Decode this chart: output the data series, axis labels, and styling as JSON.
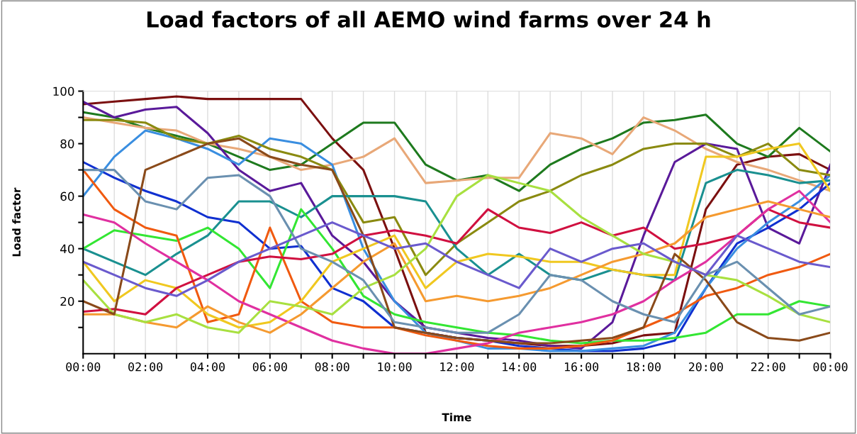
{
  "chart_data": {
    "type": "line",
    "title": "Load factors of all AEMO wind farms over 24 h",
    "xlabel": "Time",
    "ylabel": "Load factor",
    "x": [
      0,
      1,
      2,
      3,
      4,
      5,
      6,
      7,
      8,
      9,
      10,
      11,
      12,
      13,
      14,
      15,
      16,
      17,
      18,
      19,
      20,
      21,
      22,
      23,
      24
    ],
    "xlim": [
      0,
      24
    ],
    "ylim": [
      0,
      100
    ],
    "xticks": [
      {
        "value": 0,
        "label": "00:00"
      },
      {
        "value": 1,
        "label": null
      },
      {
        "value": 2,
        "label": "02:00"
      },
      {
        "value": 3,
        "label": null
      },
      {
        "value": 4,
        "label": "04:00"
      },
      {
        "value": 5,
        "label": null
      },
      {
        "value": 6,
        "label": "06:00"
      },
      {
        "value": 7,
        "label": null
      },
      {
        "value": 8,
        "label": "08:00"
      },
      {
        "value": 9,
        "label": null
      },
      {
        "value": 10,
        "label": "10:00"
      },
      {
        "value": 11,
        "label": null
      },
      {
        "value": 12,
        "label": "12:00"
      },
      {
        "value": 13,
        "label": null
      },
      {
        "value": 14,
        "label": "14:00"
      },
      {
        "value": 15,
        "label": null
      },
      {
        "value": 16,
        "label": "16:00"
      },
      {
        "value": 17,
        "label": null
      },
      {
        "value": 18,
        "label": "18:00"
      },
      {
        "value": 19,
        "label": null
      },
      {
        "value": 20,
        "label": "20:00"
      },
      {
        "value": 21,
        "label": null
      },
      {
        "value": 22,
        "label": "22:00"
      },
      {
        "value": 23,
        "label": null
      },
      {
        "value": 24,
        "label": "00:00"
      }
    ],
    "yticks": [
      {
        "value": 10,
        "label": null
      },
      20,
      {
        "value": 30,
        "label": null
      },
      40,
      {
        "value": 50,
        "label": null
      },
      60,
      {
        "value": 70,
        "label": null
      },
      80,
      {
        "value": 90,
        "label": null
      },
      100
    ],
    "grid": "x",
    "legend": false,
    "marker": "none",
    "line_style": "solid",
    "series": [
      {
        "color": "#7b1010",
        "values": [
          95,
          96,
          97,
          98,
          97,
          97,
          97,
          97,
          82,
          70,
          40,
          8,
          6,
          5,
          4,
          3,
          3,
          4,
          7,
          8,
          55,
          72,
          75,
          76,
          70
        ]
      },
      {
        "color": "#1e7a1e",
        "values": [
          92,
          90,
          86,
          83,
          80,
          75,
          70,
          72,
          80,
          88,
          88,
          72,
          66,
          68,
          62,
          72,
          78,
          82,
          88,
          89,
          91,
          80,
          75,
          86,
          77
        ]
      },
      {
        "color": "#e8a878",
        "values": [
          90,
          88,
          86,
          85,
          80,
          78,
          75,
          70,
          72,
          75,
          82,
          65,
          66,
          67,
          67,
          84,
          82,
          76,
          90,
          85,
          78,
          73,
          70,
          66,
          62
        ]
      },
      {
        "color": "#5a1a9a",
        "values": [
          96,
          90,
          93,
          94,
          84,
          70,
          62,
          65,
          45,
          35,
          20,
          10,
          8,
          6,
          5,
          3,
          2,
          12,
          45,
          73,
          80,
          78,
          48,
          42,
          72
        ]
      },
      {
        "color": "#1030d0",
        "values": [
          73,
          67,
          62,
          58,
          52,
          50,
          40,
          41,
          25,
          20,
          10,
          8,
          6,
          5,
          3,
          2,
          1,
          1,
          2,
          5,
          25,
          42,
          48,
          55,
          65
        ]
      },
      {
        "color": "#3a8ee0",
        "values": [
          60,
          75,
          85,
          82,
          78,
          72,
          82,
          80,
          72,
          40,
          20,
          8,
          5,
          2,
          2,
          1,
          1,
          2,
          3,
          8,
          25,
          40,
          50,
          58,
          68
        ]
      },
      {
        "color": "#8a8a10",
        "values": [
          89,
          89,
          88,
          82,
          80,
          83,
          78,
          75,
          70,
          50,
          52,
          30,
          42,
          50,
          58,
          62,
          68,
          72,
          78,
          80,
          80,
          75,
          80,
          70,
          68
        ]
      },
      {
        "color": "#1a9090",
        "values": [
          40,
          35,
          30,
          38,
          45,
          58,
          58,
          52,
          60,
          60,
          60,
          58,
          40,
          30,
          38,
          30,
          28,
          32,
          30,
          28,
          65,
          70,
          68,
          65,
          66
        ]
      },
      {
        "color": "#33e633",
        "values": [
          40,
          47,
          45,
          43,
          48,
          40,
          25,
          55,
          40,
          22,
          15,
          12,
          10,
          8,
          7,
          5,
          4,
          5,
          5,
          6,
          8,
          15,
          15,
          20,
          18
        ]
      },
      {
        "color": "#f05a10",
        "values": [
          70,
          55,
          48,
          45,
          12,
          15,
          48,
          20,
          12,
          10,
          10,
          7,
          5,
          3,
          2,
          2,
          3,
          5,
          10,
          15,
          22,
          25,
          30,
          33,
          38
        ]
      },
      {
        "color": "#f0c820",
        "values": [
          35,
          20,
          28,
          25,
          15,
          10,
          12,
          20,
          35,
          40,
          45,
          25,
          35,
          38,
          37,
          35,
          35,
          32,
          30,
          30,
          75,
          75,
          78,
          80,
          62
        ]
      },
      {
        "color": "#d01040",
        "values": [
          16,
          17,
          15,
          25,
          30,
          35,
          37,
          36,
          38,
          45,
          47,
          45,
          42,
          55,
          48,
          46,
          50,
          45,
          48,
          40,
          42,
          45,
          55,
          50,
          48
        ]
      },
      {
        "color": "#e030a0",
        "values": [
          53,
          50,
          42,
          35,
          28,
          20,
          15,
          10,
          5,
          2,
          0,
          0,
          2,
          4,
          8,
          10,
          12,
          15,
          20,
          28,
          35,
          45,
          55,
          62,
          50
        ]
      },
      {
        "color": "#f59a30",
        "values": [
          15,
          15,
          12,
          10,
          18,
          12,
          8,
          15,
          25,
          35,
          42,
          20,
          22,
          20,
          22,
          25,
          30,
          35,
          38,
          42,
          52,
          55,
          58,
          55,
          52
        ]
      },
      {
        "color": "#a8e040",
        "values": [
          28,
          15,
          12,
          15,
          10,
          8,
          20,
          18,
          15,
          25,
          30,
          40,
          60,
          68,
          65,
          62,
          52,
          45,
          38,
          35,
          30,
          28,
          22,
          15,
          12
        ]
      },
      {
        "color": "#8a4a1a",
        "values": [
          20,
          15,
          70,
          75,
          80,
          82,
          75,
          72,
          70,
          45,
          10,
          8,
          6,
          5,
          4,
          4,
          5,
          6,
          10,
          38,
          28,
          12,
          6,
          5,
          8
        ]
      },
      {
        "color": "#6a90b0",
        "values": [
          70,
          70,
          58,
          55,
          67,
          68,
          60,
          40,
          35,
          28,
          12,
          10,
          8,
          8,
          15,
          30,
          28,
          20,
          15,
          12,
          30,
          35,
          25,
          15,
          18
        ]
      },
      {
        "color": "#6a5acd",
        "values": [
          35,
          30,
          25,
          22,
          28,
          35,
          40,
          45,
          50,
          45,
          40,
          42,
          35,
          30,
          25,
          40,
          35,
          40,
          42,
          35,
          30,
          45,
          40,
          35,
          33
        ]
      }
    ]
  }
}
